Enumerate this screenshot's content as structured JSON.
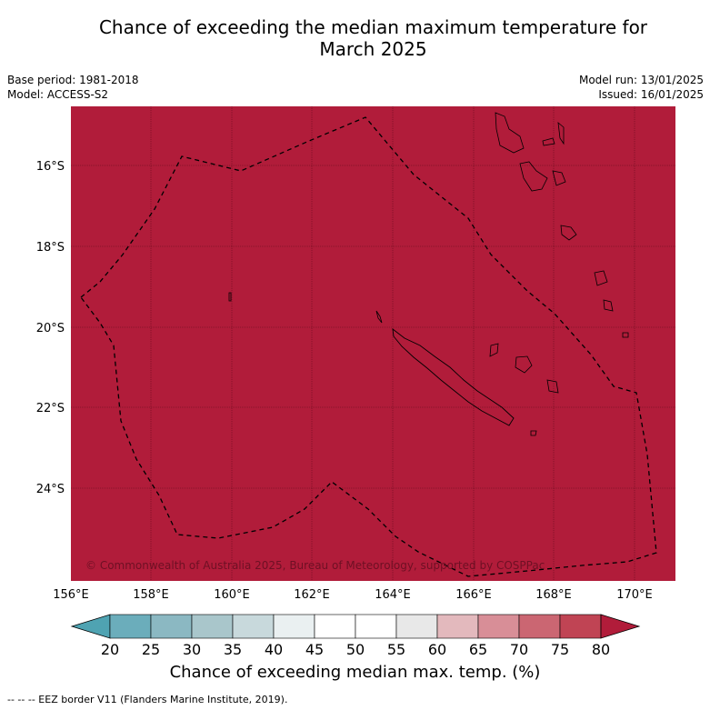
{
  "header": {
    "title_line1": "Chance of exceeding the median maximum temperature for",
    "title_line2": "March 2025",
    "base_period": "Base period: 1981-2018",
    "model": "Model: ACCESS-S2",
    "model_run": "Model run: 13/01/2025",
    "issued": "Issued: 16/01/2025"
  },
  "map": {
    "fill_color": "#b11c3a",
    "lon_ticks": [
      "156°E",
      "158°E",
      "160°E",
      "162°E",
      "164°E",
      "166°E",
      "168°E",
      "170°E"
    ],
    "lat_ticks": [
      "16°S",
      "18°S",
      "20°S",
      "22°S",
      "24°S"
    ],
    "copyright": "© Commonwealth of Australia 2025, Bureau of Meteorology, supported by COSPPac"
  },
  "colorbar": {
    "tick_labels": [
      "20",
      "25",
      "30",
      "35",
      "40",
      "45",
      "50",
      "55",
      "60",
      "65",
      "70",
      "75",
      "80"
    ],
    "colors": [
      "#4fa3b2",
      "#6badbb",
      "#8bb8c2",
      "#a9c6cb",
      "#c8d9dc",
      "#eaf0f1",
      "#ffffff",
      "#ffffff",
      "#e8e8e8",
      "#e3b9bd",
      "#d88e97",
      "#cb6672",
      "#c04454",
      "#b11c3a"
    ],
    "label": "Chance of exceeding median max. temp. (%)"
  },
  "legend": {
    "eez_note": "-- -- -- EEZ border V11 (Flanders Marine Institute, 2019)."
  }
}
